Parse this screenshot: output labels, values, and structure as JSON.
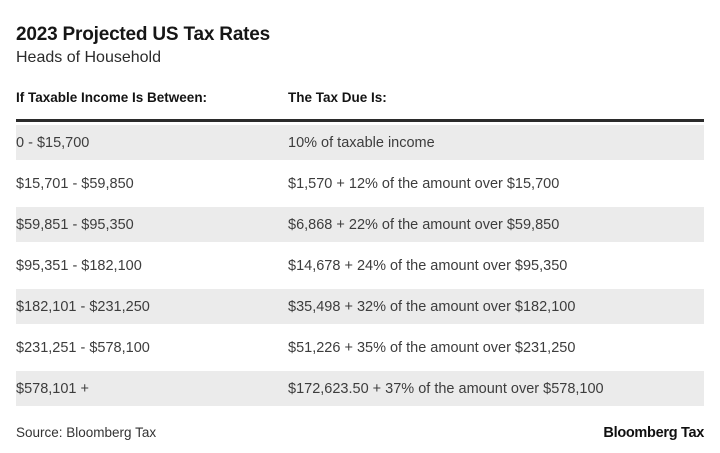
{
  "header": {
    "title": "2023 Projected US Tax Rates",
    "subtitle": "Heads of Household"
  },
  "chart_data": {
    "type": "table",
    "title": "2023 Projected US Tax Rates",
    "subtitle": "Heads of Household",
    "columns": [
      "If Taxable Income Is Between:",
      "The Tax Due Is:"
    ],
    "rows": [
      {
        "income": "0 - $15,700",
        "tax": "10% of taxable income"
      },
      {
        "income": "$15,701 - $59,850",
        "tax": "$1,570 + 12% of the amount over $15,700"
      },
      {
        "income": "$59,851 - $95,350",
        "tax": "$6,868 + 22% of the amount over $59,850"
      },
      {
        "income": "$95,351 - $182,100",
        "tax": "$14,678 + 24% of the amount over $95,350"
      },
      {
        "income": "$182,101 - $231,250",
        "tax": "$35,498 + 32% of the amount over $182,100"
      },
      {
        "income": "$231,251 - $578,100",
        "tax": "$51,226 + 35% of the amount over $231,250"
      },
      {
        "income": "$578,101 +",
        "tax": "$172,623.50 + 37% of the amount over $578,100"
      }
    ],
    "layout": {
      "stripe_color": "#ebebeb",
      "rule_color": "#2b2b2b",
      "striped_row_indexes": [
        0,
        2,
        4,
        6
      ]
    }
  },
  "footer": {
    "source": "Source: Bloomberg Tax",
    "logo": "Bloomberg Tax"
  }
}
